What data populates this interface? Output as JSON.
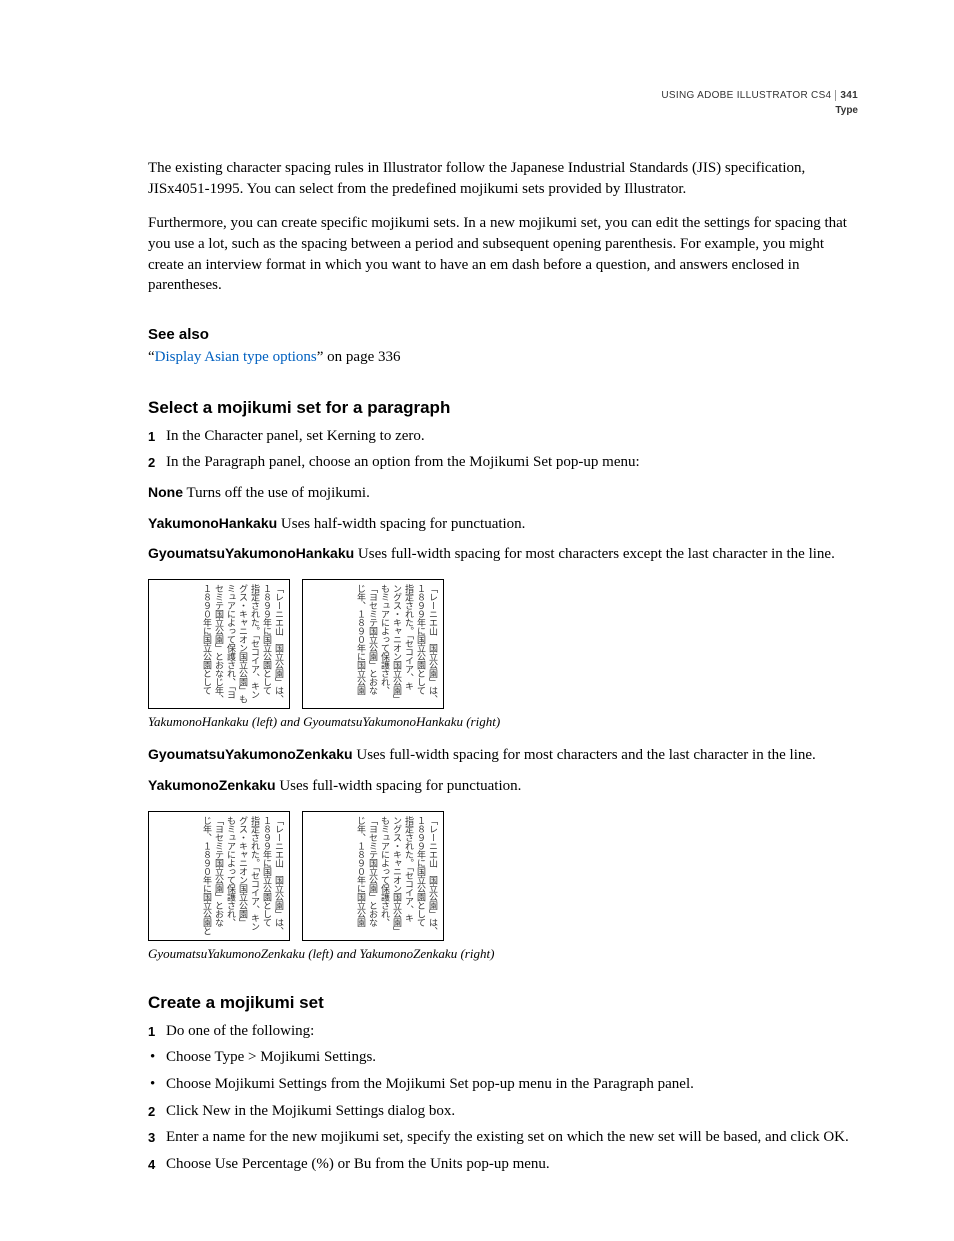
{
  "header": {
    "product": "USING ADOBE ILLUSTRATOR CS4",
    "pagenum": "341",
    "section": "Type"
  },
  "intro1": "The existing character spacing rules in Illustrator follow the Japanese Industrial Standards (JIS) specification, JISx4051-1995. You can select from the predefined mojikumi sets provided by Illustrator.",
  "intro2": "Furthermore, you can create specific mojikumi sets. In a new mojikumi set, you can edit the settings for spacing that you use a lot, such as the spacing between a period and subsequent opening parenthesis. For example, you might create an interview format in which you want to have an em dash before a question, and answers enclosed in parentheses.",
  "seealso": {
    "heading": "See also",
    "quote_open": "“",
    "link_text": "Display Asian type options",
    "quote_close": "” on page 336"
  },
  "select": {
    "heading": "Select a mojikumi set for a paragraph",
    "step1": "In the Character panel, set Kerning to zero.",
    "step2": "In the Paragraph panel, choose an option from the Mojikumi Set pop-up menu:",
    "defs": {
      "none": {
        "t": "None",
        "d": "  Turns off the use of mojikumi."
      },
      "yh": {
        "t": "YakumonoHankaku",
        "d": "  Uses half-width spacing for punctuation."
      },
      "gyh": {
        "t": "GyoumatsuYakumonoHankaku",
        "d": "  Uses full-width spacing for most characters except the last character in the line."
      },
      "gyz": {
        "t": "GyoumatsuYakumonoZenkaku",
        "d": "  Uses full-width spacing for most characters and the last character in the line."
      },
      "yz": {
        "t": "YakumonoZenkaku",
        "d": "  Uses full-width spacing for punctuation."
      }
    },
    "caption1": "YakumonoHankaku (left) and GyoumatsuYakumonoHankaku (right)",
    "caption2": "GyoumatsuYakumonoZenkaku (left) and YakumonoZenkaku (right)"
  },
  "jp": {
    "c1": "「レーニエ山　国立公園」は、",
    "c2": "１８９９年に国立公園として",
    "c3": "指定された。「セコイア、キン",
    "c4": "グス・キャニオン国立公園」も",
    "c5": "ミュアによって保護され、「ヨ",
    "c6": "セミテ国立公園」とおなじ年、",
    "c7": "１８９０年に国立公園として",
    "d1": "「レーニエ山　国立公園」は、",
    "d2": "１８９９年に国立公園として",
    "d3": "指定された。「セコイア、キ",
    "d4": "ングス・キャニオン国立公園」",
    "d5": "もミュアによって保護され、",
    "d6": "「ヨセミテ国立公園」とおな",
    "d7": "じ年、１８９０年に国立公園",
    "e1": "「レーニエ山　国立公園」は、",
    "e2": "１８９９年に国立公園として",
    "e3": "指定された。「セコイア、キン",
    "e4": "グス・キャニオン国立公園」",
    "e5": "もミュアによって保護され、",
    "e6": "「ヨセミテ国立公園」とおな",
    "e7": "じ年、１８９０年に国立公園と",
    "f1": "「レーニエ山　国立公園」は、",
    "f2": "１８９９年に国立公園として",
    "f3": "指定された。「セコイア、キ",
    "f4": "ングス・キャニオン国立公園」",
    "f5": "もミュアによって保護され、",
    "f6": "「ヨセミテ国立公園」とおな",
    "f7": "じ年、１８９０年に国立公園"
  },
  "create": {
    "heading": "Create a mojikumi set",
    "step1": "Do one of the following:",
    "b1": "Choose Type > Mojikumi Settings.",
    "b2": "Choose Mojikumi Settings from the Mojikumi Set pop-up menu in the Paragraph panel.",
    "step2": "Click New in the Mojikumi Settings dialog box.",
    "step3": "Enter a name for the new mojikumi set, specify the existing set on which the new set will be based, and click OK.",
    "step4": "Choose Use Percentage (%) or Bu from the Units pop-up menu."
  }
}
